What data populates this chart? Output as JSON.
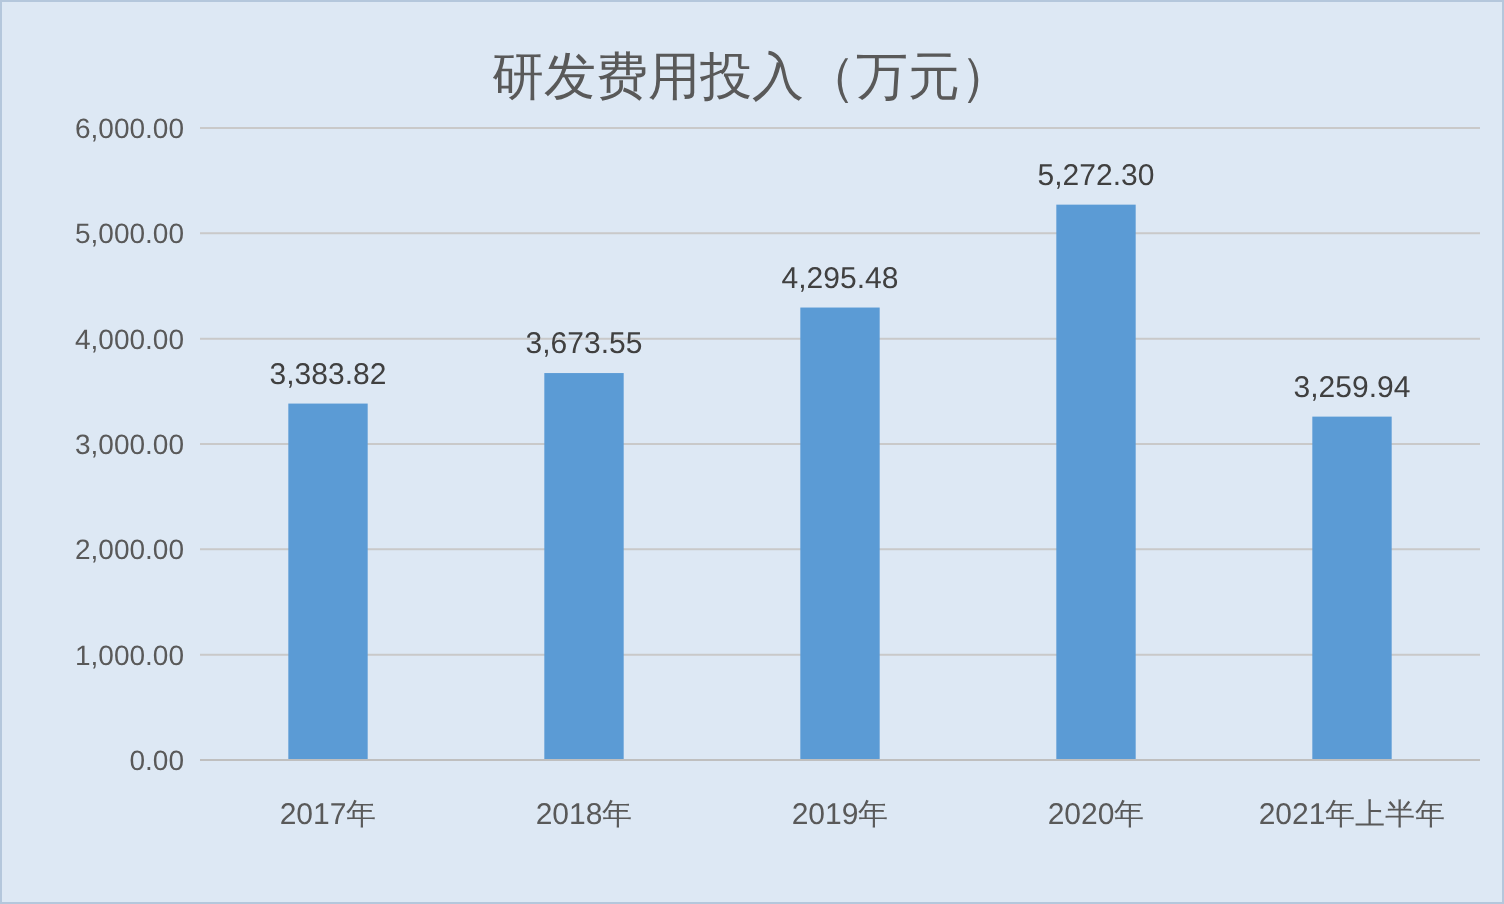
{
  "chart_data": {
    "type": "bar",
    "title": "研发费用投入（万元）",
    "categories": [
      "2017年",
      "2018年",
      "2019年",
      "2020年",
      "2021年上半年"
    ],
    "values": [
      3383.82,
      3673.55,
      4295.48,
      5272.3,
      3259.94
    ],
    "value_labels": [
      "3,383.82",
      "3,673.55",
      "4,295.48",
      "5,272.30",
      "3,259.94"
    ],
    "color": "#5b9bd5",
    "ylim": [
      0,
      6000
    ],
    "yticks": [
      {
        "value": 0,
        "label": "0.00"
      },
      {
        "value": 1000,
        "label": "1,000.00"
      },
      {
        "value": 2000,
        "label": "2,000.00"
      },
      {
        "value": 3000,
        "label": "3,000.00"
      },
      {
        "value": 4000,
        "label": "4,000.00"
      },
      {
        "value": 5000,
        "label": "5,000.00"
      },
      {
        "value": 6000,
        "label": "6,000.00"
      }
    ],
    "grid": "y"
  }
}
